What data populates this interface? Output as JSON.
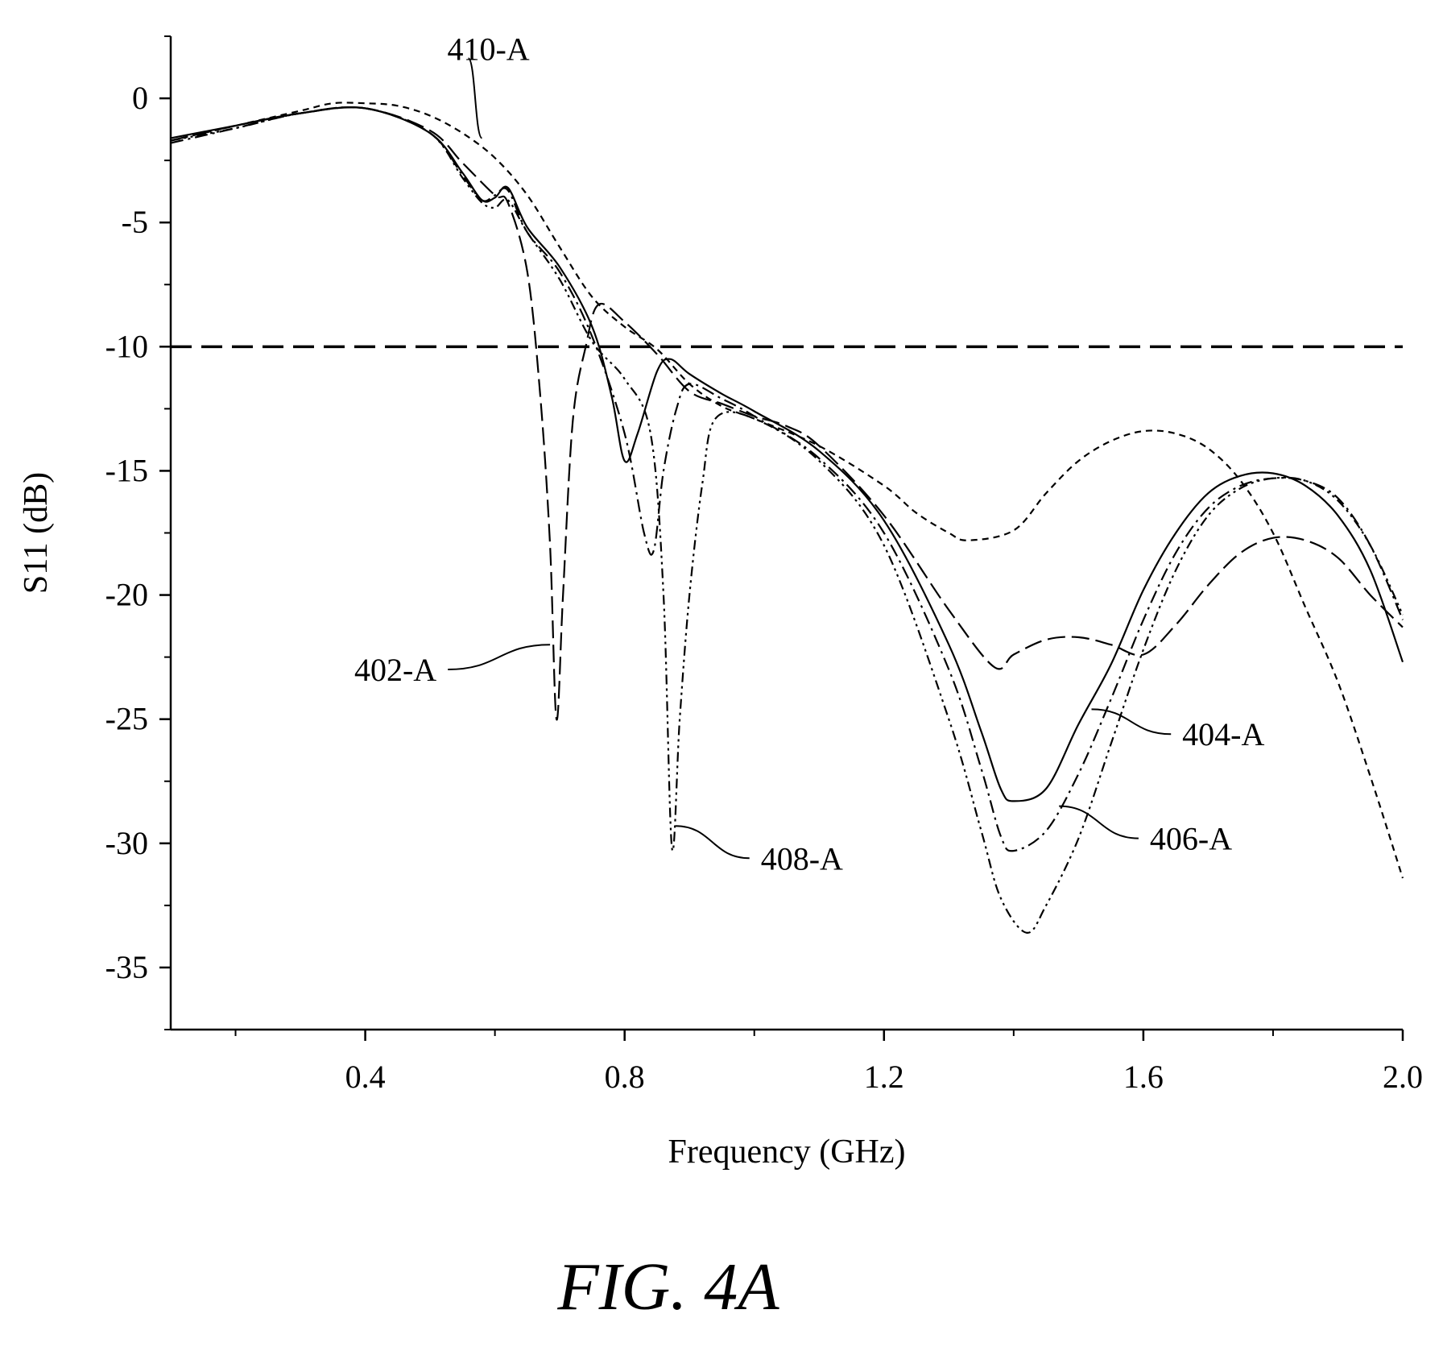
{
  "chart_data": {
    "type": "line",
    "xlabel": "Frequency (GHz)",
    "ylabel": "S11 (dB)",
    "xlim": [
      0.1,
      2.0
    ],
    "ylim": [
      -37.5,
      2.5
    ],
    "x_ticks": [
      "0.4",
      "0.8",
      "1.2",
      "1.6",
      "2.0"
    ],
    "x_tick_values": [
      0.4,
      0.8,
      1.2,
      1.6,
      2.0
    ],
    "y_ticks": [
      "0",
      "-5",
      "-10",
      "-15",
      "-20",
      "-25",
      "-30",
      "-35"
    ],
    "y_tick_values": [
      0,
      -5,
      -10,
      -15,
      -20,
      -25,
      -30,
      -35
    ],
    "grid": false,
    "reference_line": {
      "y": -10,
      "style": "long-dash"
    },
    "series": [
      {
        "name": "402-A",
        "dash": "22,8",
        "points": [
          [
            0.1,
            -1.7
          ],
          [
            0.2,
            -1.1
          ],
          [
            0.3,
            -0.6
          ],
          [
            0.4,
            -0.4
          ],
          [
            0.5,
            -1.3
          ],
          [
            0.55,
            -2.6
          ],
          [
            0.6,
            -3.9
          ],
          [
            0.62,
            -4.2
          ],
          [
            0.65,
            -7.0
          ],
          [
            0.67,
            -12.0
          ],
          [
            0.685,
            -18.0
          ],
          [
            0.695,
            -25.0
          ],
          [
            0.705,
            -20.0
          ],
          [
            0.72,
            -13.0
          ],
          [
            0.74,
            -10.0
          ],
          [
            0.76,
            -8.3
          ],
          [
            0.8,
            -9.0
          ],
          [
            0.85,
            -10.3
          ],
          [
            0.9,
            -11.8
          ],
          [
            0.95,
            -12.3
          ],
          [
            1.0,
            -12.8
          ],
          [
            1.05,
            -13.2
          ],
          [
            1.1,
            -14.0
          ],
          [
            1.2,
            -16.8
          ],
          [
            1.3,
            -20.6
          ],
          [
            1.37,
            -22.9
          ],
          [
            1.4,
            -22.4
          ],
          [
            1.45,
            -21.8
          ],
          [
            1.5,
            -21.7
          ],
          [
            1.55,
            -22.0
          ],
          [
            1.6,
            -22.4
          ],
          [
            1.65,
            -21.2
          ],
          [
            1.7,
            -19.6
          ],
          [
            1.75,
            -18.3
          ],
          [
            1.8,
            -17.7
          ],
          [
            1.85,
            -17.8
          ],
          [
            1.9,
            -18.5
          ],
          [
            1.95,
            -20.0
          ],
          [
            2.0,
            -21.3
          ]
        ]
      },
      {
        "name": "404-A",
        "dash": "",
        "points": [
          [
            0.1,
            -1.6
          ],
          [
            0.2,
            -1.1
          ],
          [
            0.3,
            -0.6
          ],
          [
            0.4,
            -0.4
          ],
          [
            0.5,
            -1.4
          ],
          [
            0.55,
            -3.0
          ],
          [
            0.58,
            -4.1
          ],
          [
            0.6,
            -4.0
          ],
          [
            0.62,
            -3.6
          ],
          [
            0.65,
            -5.2
          ],
          [
            0.7,
            -6.8
          ],
          [
            0.75,
            -9.2
          ],
          [
            0.78,
            -12.0
          ],
          [
            0.8,
            -14.6
          ],
          [
            0.82,
            -13.5
          ],
          [
            0.85,
            -11.0
          ],
          [
            0.87,
            -10.5
          ],
          [
            0.9,
            -11.1
          ],
          [
            0.95,
            -11.9
          ],
          [
            1.0,
            -12.6
          ],
          [
            1.1,
            -14.2
          ],
          [
            1.2,
            -17.0
          ],
          [
            1.3,
            -22.0
          ],
          [
            1.35,
            -25.5
          ],
          [
            1.38,
            -27.8
          ],
          [
            1.4,
            -28.3
          ],
          [
            1.45,
            -27.8
          ],
          [
            1.5,
            -25.2
          ],
          [
            1.55,
            -22.8
          ],
          [
            1.6,
            -19.8
          ],
          [
            1.65,
            -17.5
          ],
          [
            1.7,
            -15.9
          ],
          [
            1.75,
            -15.2
          ],
          [
            1.8,
            -15.1
          ],
          [
            1.85,
            -15.6
          ],
          [
            1.9,
            -16.8
          ],
          [
            1.95,
            -19.0
          ],
          [
            2.0,
            -22.7
          ]
        ]
      },
      {
        "name": "406-A",
        "dash": "16,6,3,6",
        "points": [
          [
            0.1,
            -1.8
          ],
          [
            0.2,
            -1.2
          ],
          [
            0.3,
            -0.6
          ],
          [
            0.4,
            -0.4
          ],
          [
            0.5,
            -1.4
          ],
          [
            0.55,
            -3.1
          ],
          [
            0.58,
            -4.1
          ],
          [
            0.6,
            -3.9
          ],
          [
            0.62,
            -3.7
          ],
          [
            0.65,
            -5.4
          ],
          [
            0.7,
            -7.0
          ],
          [
            0.75,
            -9.6
          ],
          [
            0.8,
            -13.5
          ],
          [
            0.83,
            -17.5
          ],
          [
            0.845,
            -18.2
          ],
          [
            0.86,
            -15.0
          ],
          [
            0.88,
            -12.5
          ],
          [
            0.9,
            -11.5
          ],
          [
            0.95,
            -12.1
          ],
          [
            1.0,
            -12.8
          ],
          [
            1.1,
            -14.5
          ],
          [
            1.2,
            -17.5
          ],
          [
            1.3,
            -23.0
          ],
          [
            1.35,
            -27.0
          ],
          [
            1.38,
            -29.7
          ],
          [
            1.4,
            -30.3
          ],
          [
            1.45,
            -29.5
          ],
          [
            1.5,
            -27.2
          ],
          [
            1.55,
            -24.2
          ],
          [
            1.6,
            -21.0
          ],
          [
            1.65,
            -18.3
          ],
          [
            1.7,
            -16.5
          ],
          [
            1.75,
            -15.6
          ],
          [
            1.8,
            -15.3
          ],
          [
            1.85,
            -15.4
          ],
          [
            1.9,
            -16.1
          ],
          [
            1.95,
            -18.0
          ],
          [
            2.0,
            -21.0
          ]
        ]
      },
      {
        "name": "408-A",
        "dash": "12,5,3,5,3,5",
        "points": [
          [
            0.1,
            -1.7
          ],
          [
            0.2,
            -1.2
          ],
          [
            0.3,
            -0.6
          ],
          [
            0.4,
            -0.4
          ],
          [
            0.5,
            -1.4
          ],
          [
            0.55,
            -3.2
          ],
          [
            0.58,
            -4.2
          ],
          [
            0.6,
            -4.4
          ],
          [
            0.62,
            -4.1
          ],
          [
            0.65,
            -5.4
          ],
          [
            0.7,
            -7.3
          ],
          [
            0.75,
            -9.8
          ],
          [
            0.8,
            -11.3
          ],
          [
            0.84,
            -13.5
          ],
          [
            0.86,
            -20.0
          ],
          [
            0.873,
            -30.2
          ],
          [
            0.885,
            -25.0
          ],
          [
            0.9,
            -20.0
          ],
          [
            0.92,
            -15.5
          ],
          [
            0.94,
            -12.9
          ],
          [
            1.0,
            -12.9
          ],
          [
            1.1,
            -14.6
          ],
          [
            1.2,
            -18.0
          ],
          [
            1.3,
            -25.0
          ],
          [
            1.35,
            -29.5
          ],
          [
            1.38,
            -32.2
          ],
          [
            1.42,
            -33.6
          ],
          [
            1.45,
            -32.5
          ],
          [
            1.5,
            -29.8
          ],
          [
            1.55,
            -26.0
          ],
          [
            1.6,
            -22.2
          ],
          [
            1.65,
            -19.0
          ],
          [
            1.7,
            -16.8
          ],
          [
            1.75,
            -15.7
          ],
          [
            1.8,
            -15.3
          ],
          [
            1.85,
            -15.4
          ],
          [
            1.9,
            -16.2
          ],
          [
            1.95,
            -18.0
          ],
          [
            2.0,
            -20.8
          ]
        ]
      },
      {
        "name": "410-A",
        "dash": "8,6",
        "points": [
          [
            0.1,
            -1.7
          ],
          [
            0.2,
            -1.1
          ],
          [
            0.3,
            -0.5
          ],
          [
            0.35,
            -0.2
          ],
          [
            0.4,
            -0.2
          ],
          [
            0.45,
            -0.3
          ],
          [
            0.5,
            -0.7
          ],
          [
            0.55,
            -1.4
          ],
          [
            0.6,
            -2.4
          ],
          [
            0.65,
            -3.9
          ],
          [
            0.7,
            -6.0
          ],
          [
            0.75,
            -8.0
          ],
          [
            0.8,
            -9.2
          ],
          [
            0.85,
            -10.1
          ],
          [
            0.9,
            -11.5
          ],
          [
            0.95,
            -12.4
          ],
          [
            1.0,
            -12.9
          ],
          [
            1.1,
            -14.0
          ],
          [
            1.2,
            -15.6
          ],
          [
            1.25,
            -16.7
          ],
          [
            1.3,
            -17.5
          ],
          [
            1.33,
            -17.8
          ],
          [
            1.4,
            -17.4
          ],
          [
            1.45,
            -15.9
          ],
          [
            1.5,
            -14.6
          ],
          [
            1.55,
            -13.8
          ],
          [
            1.6,
            -13.4
          ],
          [
            1.65,
            -13.5
          ],
          [
            1.7,
            -14.1
          ],
          [
            1.75,
            -15.4
          ],
          [
            1.8,
            -17.5
          ],
          [
            1.85,
            -20.5
          ],
          [
            1.9,
            -23.5
          ],
          [
            1.95,
            -27.3
          ],
          [
            2.0,
            -31.4
          ]
        ]
      }
    ],
    "callouts": [
      {
        "label": "410-A",
        "anchor": [
          0.58,
          -1.6
        ],
        "text_pos": [
          0.59,
          2.0
        ],
        "align": "middle"
      },
      {
        "label": "402-A",
        "anchor": [
          0.685,
          -22.0
        ],
        "text_pos": [
          0.52,
          -23.0
        ],
        "align": "end"
      },
      {
        "label": "408-A",
        "anchor": [
          0.878,
          -29.3
        ],
        "text_pos": [
          1.0,
          -30.6
        ],
        "align": "start"
      },
      {
        "label": "404-A",
        "anchor": [
          1.52,
          -24.6
        ],
        "text_pos": [
          1.65,
          -25.6
        ],
        "align": "start"
      },
      {
        "label": "406-A",
        "anchor": [
          1.47,
          -28.5
        ],
        "text_pos": [
          1.6,
          -29.8
        ],
        "align": "start"
      }
    ]
  },
  "figure_label": "FIG. 4A"
}
